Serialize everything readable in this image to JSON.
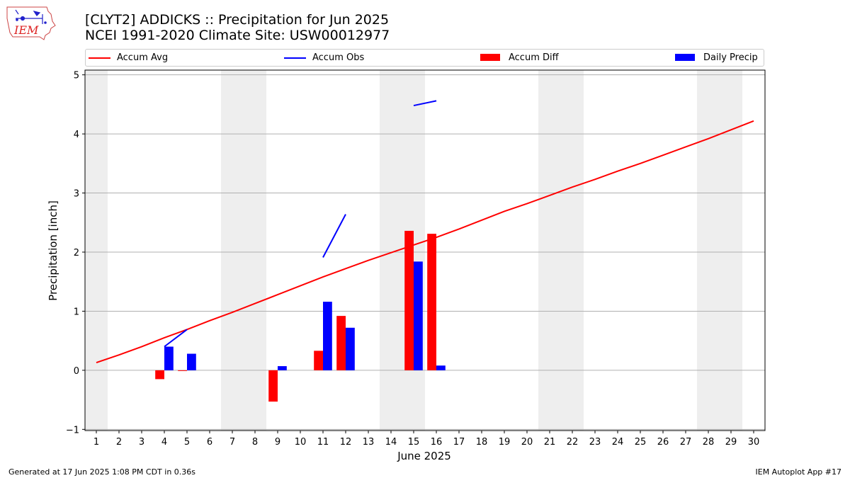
{
  "logo": {
    "text": "IEM"
  },
  "title": {
    "line1": "[CLYT2] ADDICKS :: Precipitation for Jun 2025",
    "line2": "NCEI 1991-2020 Climate Site: USW00012977"
  },
  "legend": {
    "items": [
      {
        "label": "Accum Avg",
        "kind": "line",
        "color": "#ff0000"
      },
      {
        "label": "Accum Obs",
        "kind": "line",
        "color": "#0000ff"
      },
      {
        "label": "Accum Diff",
        "kind": "bar",
        "color": "#ff0000"
      },
      {
        "label": "Daily Precip",
        "kind": "bar",
        "color": "#0000ff"
      }
    ]
  },
  "footer": {
    "left": "Generated at 17 Jun 2025 1:08 PM CDT in 0.36s",
    "right": "IEM Autoplot App #17"
  },
  "chart_data": {
    "type": "bar",
    "xlabel": "June 2025",
    "ylabel": "Precipitation [inch]",
    "xlim": [
      0.5,
      30.5
    ],
    "ylim": [
      -1.02,
      5.08
    ],
    "yticks": [
      -1,
      0,
      1,
      2,
      3,
      4,
      5
    ],
    "xticks": [
      1,
      2,
      3,
      4,
      5,
      6,
      7,
      8,
      9,
      10,
      11,
      12,
      13,
      14,
      15,
      16,
      17,
      18,
      19,
      20,
      21,
      22,
      23,
      24,
      25,
      26,
      27,
      28,
      29,
      30
    ],
    "grid": "horizontal",
    "weekend_shading": [
      [
        0.5,
        1.5
      ],
      [
        6.5,
        8.5
      ],
      [
        13.5,
        15.5
      ],
      [
        20.5,
        22.5
      ],
      [
        27.5,
        29.5
      ]
    ],
    "colors": {
      "avg": "#ff0000",
      "obs": "#0000ff",
      "diff": "#ff0000",
      "daily": "#0000ff",
      "shade": "#eeeeee",
      "grid": "#b0b0b0"
    },
    "series": [
      {
        "name": "Accum Avg",
        "kind": "line",
        "x": [
          1,
          2,
          3,
          4,
          5,
          6,
          7,
          8,
          9,
          10,
          11,
          12,
          13,
          14,
          15,
          16,
          17,
          18,
          19,
          20,
          21,
          22,
          23,
          24,
          25,
          26,
          27,
          28,
          29,
          30
        ],
        "values": [
          0.13,
          0.26,
          0.4,
          0.55,
          0.69,
          0.84,
          0.98,
          1.13,
          1.28,
          1.43,
          1.58,
          1.72,
          1.86,
          1.99,
          2.12,
          2.25,
          2.39,
          2.54,
          2.69,
          2.82,
          2.96,
          3.1,
          3.23,
          3.37,
          3.5,
          3.64,
          3.78,
          3.92,
          4.07,
          4.22
        ]
      },
      {
        "name": "Accum Obs",
        "kind": "line",
        "x": [
          4,
          5,
          11,
          12,
          15,
          16
        ],
        "values": [
          0.4,
          0.69,
          1.91,
          2.64,
          4.48,
          4.56
        ],
        "segments": [
          [
            4,
            5
          ],
          [
            11,
            12
          ],
          [
            15,
            16
          ]
        ]
      },
      {
        "name": "Accum Diff",
        "kind": "bar",
        "x": [
          4,
          5,
          9,
          11,
          12,
          15,
          16
        ],
        "values": [
          -0.15,
          -0.01,
          -0.53,
          0.33,
          0.92,
          2.36,
          2.31
        ]
      },
      {
        "name": "Daily Precip",
        "kind": "bar",
        "x": [
          4,
          5,
          9,
          11,
          12,
          15,
          16
        ],
        "values": [
          0.4,
          0.28,
          0.07,
          1.16,
          0.72,
          1.84,
          0.08
        ]
      }
    ]
  }
}
